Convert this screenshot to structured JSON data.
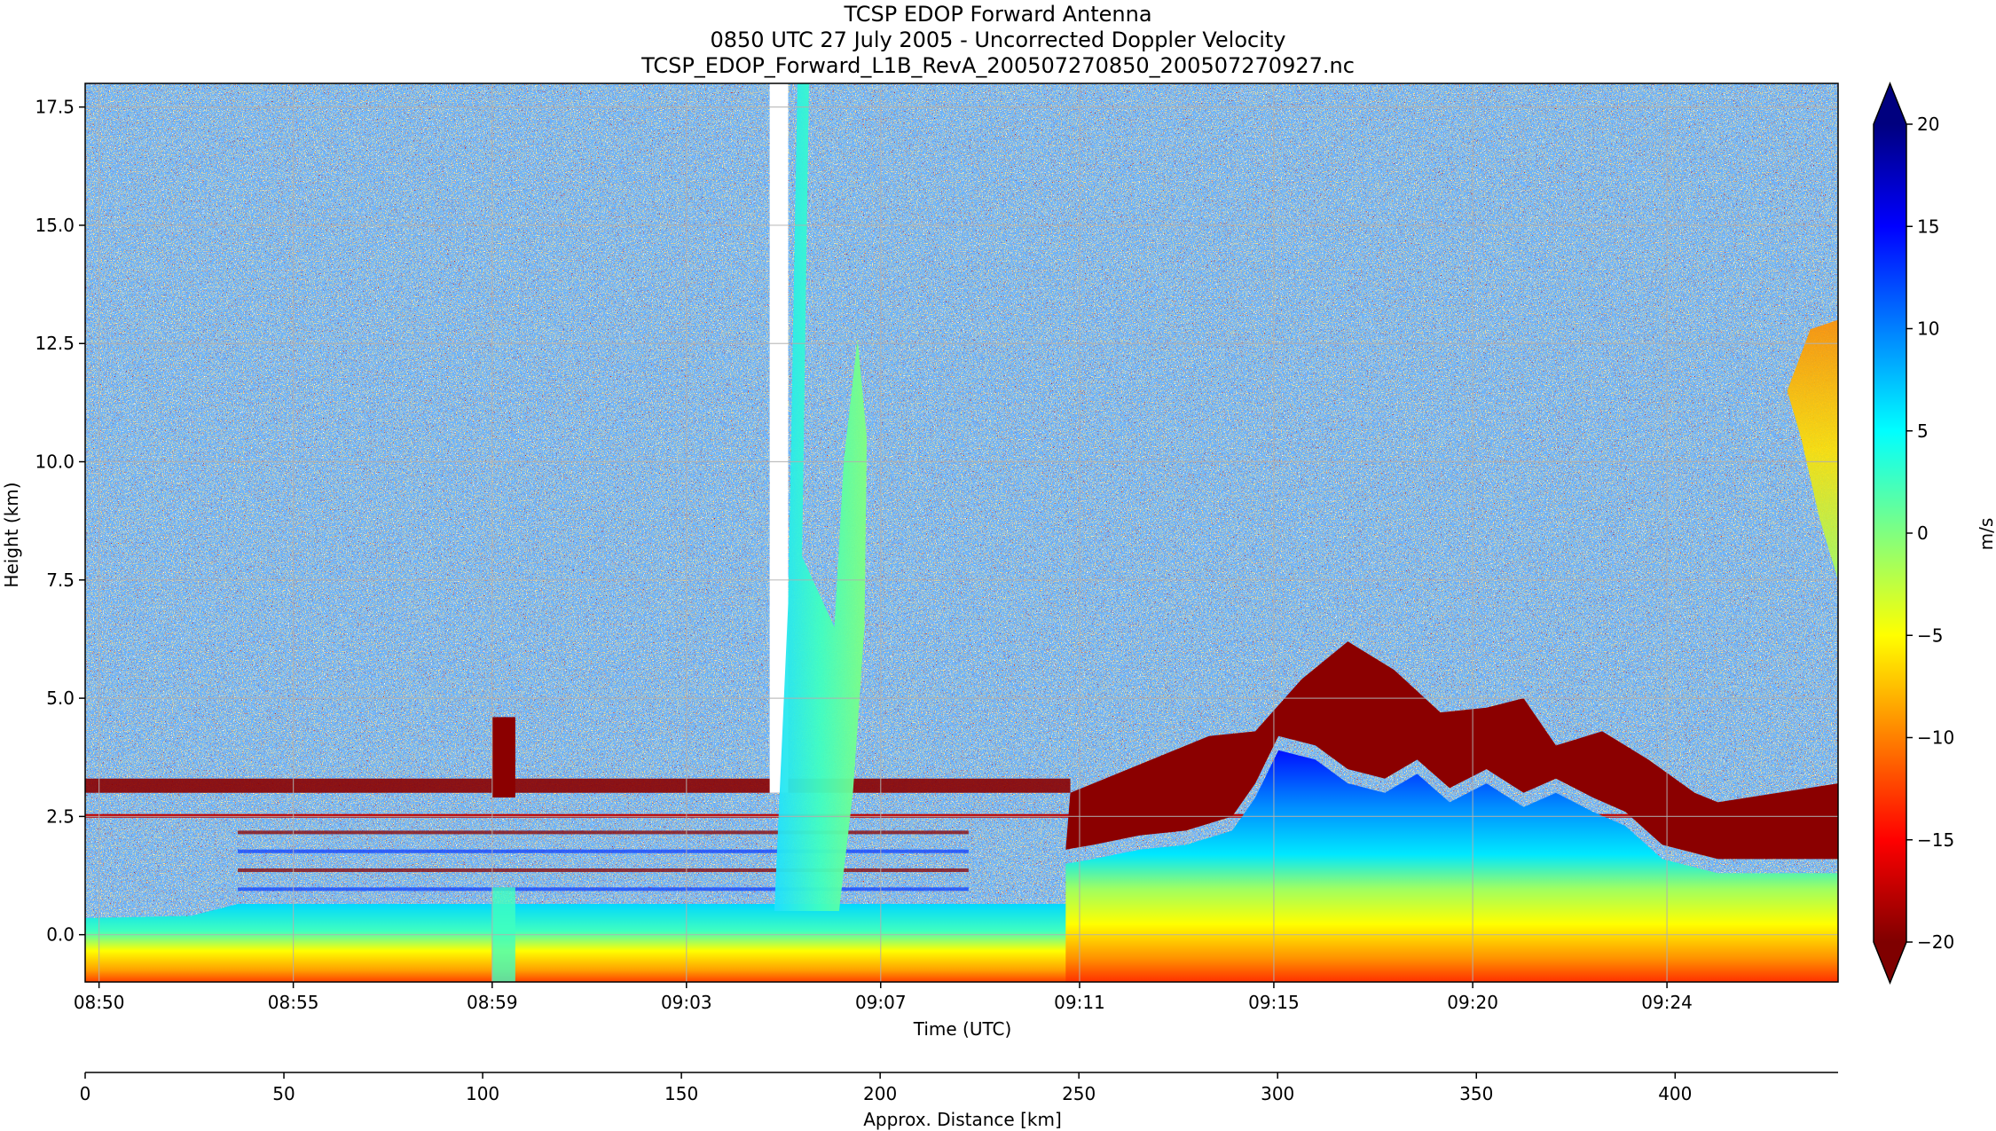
{
  "header": {
    "title_line1": "TCSP EDOP Forward Antenna",
    "title_line2": "0850 UTC 27 July 2005 - Uncorrected Doppler Velocity",
    "title_line3": "TCSP_EDOP_Forward_L1B_RevA_200507270850_200507270927.nc"
  },
  "chart_data": {
    "type": "heatmap",
    "title": "TCSP EDOP Forward Antenna\n0850 UTC 27 July 2005 - Uncorrected Doppler Velocity\nTCSP_EDOP_Forward_L1B_RevA_200507270850_200507270927.nc",
    "xlabel": "Time (UTC)",
    "ylabel": "Height (km)",
    "x2label": "Approx. Distance [km]",
    "colorbar_label": "m/s",
    "colormap": "jet_r",
    "xlim_minutes_after_0850": [
      -0.3,
      37.6
    ],
    "ylim": [
      -1.0,
      18.0
    ],
    "x_ticks": [
      {
        "label": "08:50",
        "min": 0
      },
      {
        "label": "08:55",
        "min": 4.2
      },
      {
        "label": "08:59",
        "min": 8.5
      },
      {
        "label": "09:03",
        "min": 12.7
      },
      {
        "label": "09:07",
        "min": 16.9
      },
      {
        "label": "09:11",
        "min": 21.2
      },
      {
        "label": "09:15",
        "min": 25.4
      },
      {
        "label": "09:20",
        "min": 29.7
      },
      {
        "label": "09:24",
        "min": 33.9
      }
    ],
    "y_ticks": [
      0.0,
      2.5,
      5.0,
      7.5,
      10.0,
      12.5,
      15.0,
      17.5
    ],
    "y_tick_labels": [
      "0.0",
      "2.5",
      "5.0",
      "7.5",
      "10.0",
      "12.5",
      "15.0",
      "17.5"
    ],
    "distance_ticks": [
      0,
      50,
      100,
      150,
      200,
      250,
      300,
      350,
      400
    ],
    "distance_range": [
      0,
      441
    ],
    "colorbar": {
      "vmin": -20,
      "vmax": 20,
      "ticks": [
        20,
        15,
        10,
        5,
        0,
        -5,
        -10,
        -15,
        -20
      ],
      "tick_labels": [
        "20",
        "15",
        "10",
        "5",
        "0",
        "−5",
        "−10",
        "−15",
        "−20"
      ],
      "extend": "both",
      "stops": [
        "#7f0000",
        "#ff0000",
        "#ff8000",
        "#ffff00",
        "#80ff80",
        "#00ffff",
        "#0080ff",
        "#0000ff",
        "#00007f"
      ]
    },
    "grid": true,
    "features": [
      {
        "name": "surface echo band",
        "height_km": [
          -1.0,
          0.7
        ],
        "velocity": "about -5 to 5 m/s"
      },
      {
        "name": "melting layer",
        "height_km": [
          2.3,
          3.3
        ],
        "velocity": "below -20 m/s"
      },
      {
        "name": "convective cell near 09:05",
        "height_km": [
          0.5,
          12.6
        ],
        "velocity": "0 to 10 m/s"
      },
      {
        "name": "stratiform rain 09:10-09:27",
        "height_km": [
          -1.0,
          6.3
        ],
        "velocity": "-20 to 20 m/s"
      },
      {
        "name": "anvil near 09:27",
        "height_km": [
          7.5,
          13.0
        ],
        "velocity": "-10 to 0 m/s"
      }
    ]
  }
}
